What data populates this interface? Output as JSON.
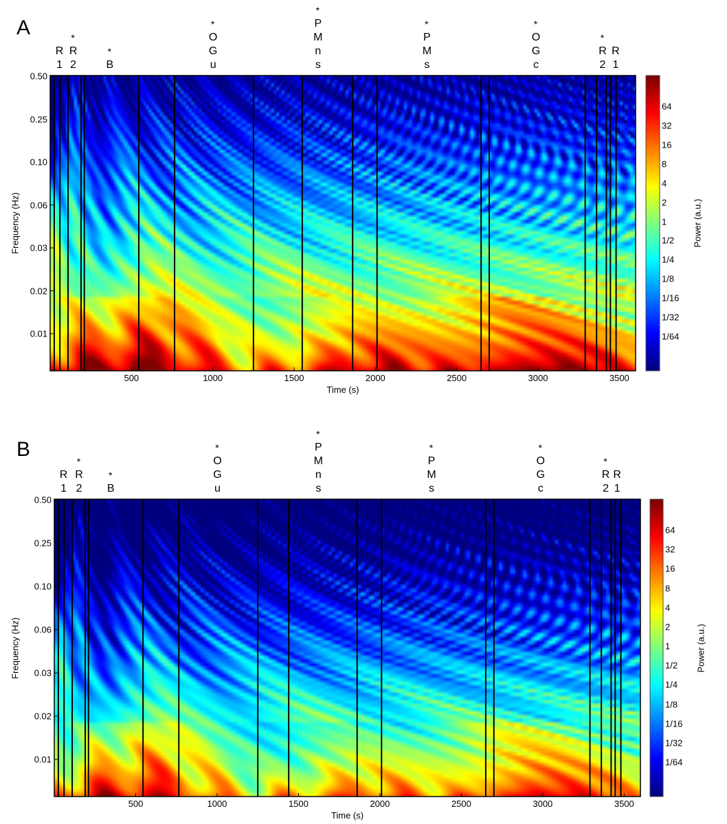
{
  "chart_data": [
    {
      "panel_label": "A",
      "type": "heatmap",
      "xlabel": "Time (s)",
      "ylabel": "Frequency (Hz)",
      "xlim": [
        0,
        3600
      ],
      "x_ticks": [
        500,
        1000,
        1500,
        2000,
        2500,
        3000,
        3500
      ],
      "y_tick_labels": [
        "0.50",
        "0.25",
        "0.10",
        "0.06",
        "0.03",
        "0.02",
        "0.01"
      ],
      "colorbar_label": "Power (a.u.)",
      "colorbar_ticks": [
        "64",
        "32",
        "16",
        "8",
        "4",
        "2",
        "1",
        "1/2",
        "1/4",
        "1/8",
        "1/16",
        "1/32",
        "1/64"
      ],
      "low_freq_power_level": 6.2,
      "event_lines_s": [
        25,
        60,
        110,
        190,
        210,
        545,
        765,
        1250,
        1550,
        1860,
        2010,
        2650,
        2700,
        3290,
        3360,
        3420,
        3445,
        3480
      ],
      "event_labels": [
        {
          "text": "R1",
          "star": false,
          "time": 55
        },
        {
          "text": "R2",
          "star": true,
          "time": 140
        },
        {
          "text": "B",
          "star": true,
          "time": 365
        },
        {
          "text": "OGu",
          "star": true,
          "time": 1000
        },
        {
          "text": "PMns",
          "star": true,
          "time": 1645
        },
        {
          "text": "PMs",
          "star": true,
          "time": 2315
        },
        {
          "text": "OGc",
          "star": true,
          "time": 2985
        },
        {
          "text": "R2",
          "star": true,
          "time": 3395
        },
        {
          "text": "R1",
          "star": false,
          "time": 3475
        }
      ]
    },
    {
      "panel_label": "B",
      "type": "heatmap",
      "xlabel": "Time (s)",
      "ylabel": "Frequency (Hz)",
      "xlim": [
        0,
        3600
      ],
      "x_ticks": [
        500,
        1000,
        1500,
        2000,
        2500,
        3000,
        3500
      ],
      "y_tick_labels": [
        "0.50",
        "0.25",
        "0.10",
        "0.06",
        "0.03",
        "0.02",
        "0.01"
      ],
      "colorbar_label": "Power (a.u.)",
      "colorbar_ticks": [
        "64",
        "32",
        "16",
        "8",
        "4",
        "2",
        "1",
        "1/2",
        "1/4",
        "1/8",
        "1/16",
        "1/32",
        "1/64"
      ],
      "low_freq_power_level": 4.3,
      "event_lines_s": [
        25,
        60,
        110,
        190,
        210,
        545,
        765,
        1250,
        1440,
        1860,
        2010,
        2650,
        2700,
        3290,
        3360,
        3420,
        3445,
        3480
      ],
      "event_labels": [
        {
          "text": "R1",
          "star": false,
          "time": 55
        },
        {
          "text": "R2",
          "star": true,
          "time": 150
        },
        {
          "text": "B",
          "star": true,
          "time": 345
        },
        {
          "text": "OGu",
          "star": true,
          "time": 1000
        },
        {
          "text": "PMns",
          "star": true,
          "time": 1620
        },
        {
          "text": "PMs",
          "star": true,
          "time": 2315
        },
        {
          "text": "OGc",
          "star": true,
          "time": 2985
        },
        {
          "text": "R2",
          "star": true,
          "time": 3385
        },
        {
          "text": "R1",
          "star": false,
          "time": 3455
        }
      ]
    }
  ]
}
